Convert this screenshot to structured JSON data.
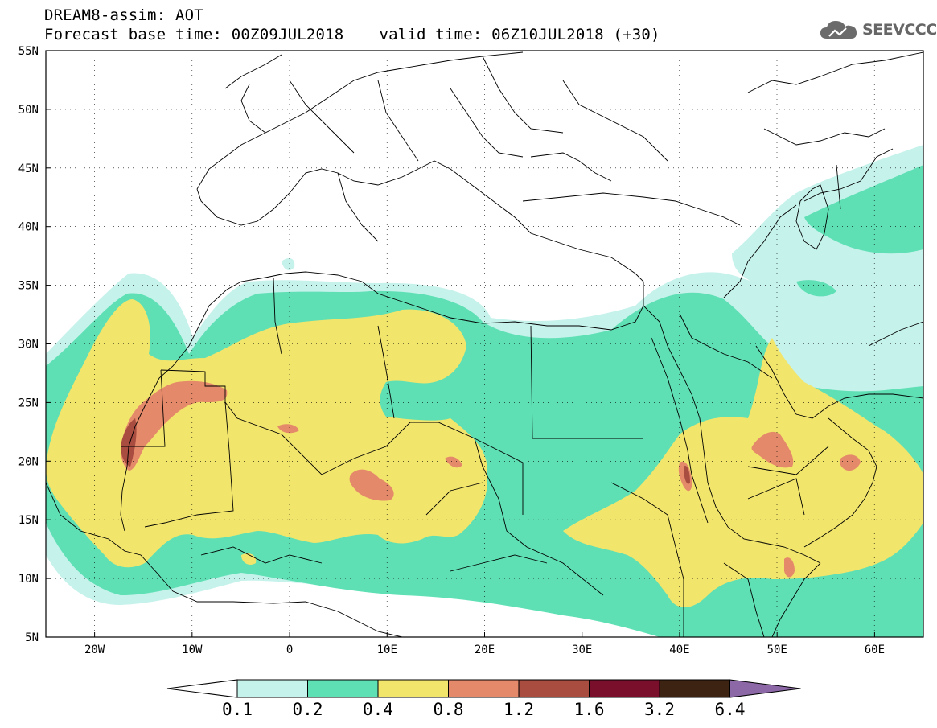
{
  "title": {
    "line1": "DREAM8-assim: AOT",
    "base": "Forecast base time: 00Z09JUL2018",
    "valid": "valid time: 06Z10JUL2018 (+30)"
  },
  "logo": {
    "text": "SEEVCCC",
    "icon": "cloud-icon"
  },
  "map": {
    "lon_range": [
      -25,
      65
    ],
    "lat_range": [
      5,
      55
    ],
    "lon_ticks": [
      "20W",
      "10W",
      "0",
      "10E",
      "20E",
      "30E",
      "40E",
      "50E",
      "60E"
    ],
    "lon_tick_values": [
      -20,
      -10,
      0,
      10,
      20,
      30,
      40,
      50,
      60
    ],
    "lat_ticks": [
      "5N",
      "10N",
      "15N",
      "20N",
      "25N",
      "30N",
      "35N",
      "40N",
      "45N",
      "50N",
      "55N"
    ],
    "lat_tick_values": [
      5,
      10,
      15,
      20,
      25,
      30,
      35,
      40,
      45,
      50,
      55
    ],
    "grid": true,
    "background": "#ffffff"
  },
  "colorbar": {
    "levels": [
      "0.1",
      "0.2",
      "0.4",
      "0.8",
      "1.2",
      "1.6",
      "3.2",
      "6.4"
    ],
    "colors": [
      "#c6f2ec",
      "#5fe0b4",
      "#f2e56c",
      "#e4896a",
      "#a84d40",
      "#7a0f2c",
      "#3d2412",
      "#8c68a6"
    ],
    "under_color": "#ffffff"
  }
}
